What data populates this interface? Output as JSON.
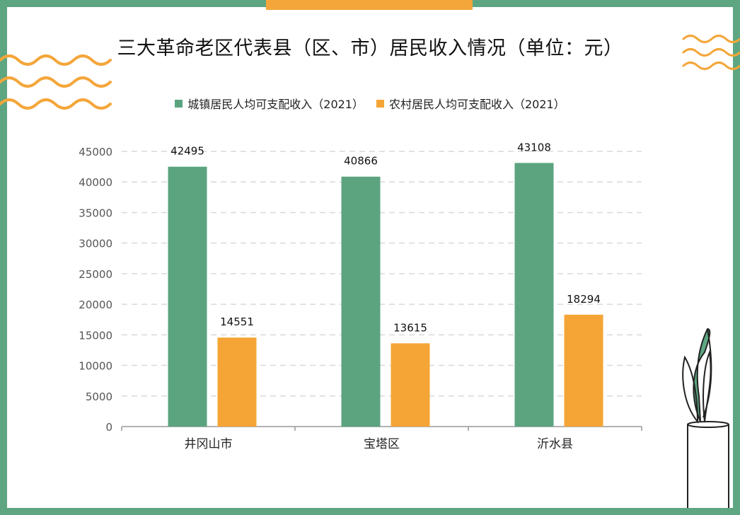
{
  "colors": {
    "frame": "#5da681",
    "accent": "#f4a63a",
    "urban": "#5ba47f",
    "rural": "#f5a535",
    "grid": "#d9d9d9",
    "axis": "#999999",
    "text": "#222222"
  },
  "chart_data": {
    "type": "bar",
    "title": "三大革命老区代表县（区、市）居民收入情况（单位：元）",
    "categories": [
      "井冈山市",
      "宝塔区",
      "沂水县"
    ],
    "series": [
      {
        "name": "城镇居民人均可支配收入（2021）",
        "values": [
          42495,
          40866,
          43108
        ]
      },
      {
        "name": "农村居民人均可支配收入（2021）",
        "values": [
          14551,
          13615,
          18294
        ]
      }
    ],
    "yticks": [
      0,
      5000,
      10000,
      15000,
      20000,
      25000,
      30000,
      35000,
      40000,
      45000
    ],
    "ylim": [
      0,
      45000
    ],
    "grid": true,
    "legend_position": "top"
  },
  "decorations": [
    "wave-icon",
    "plant-icon"
  ]
}
